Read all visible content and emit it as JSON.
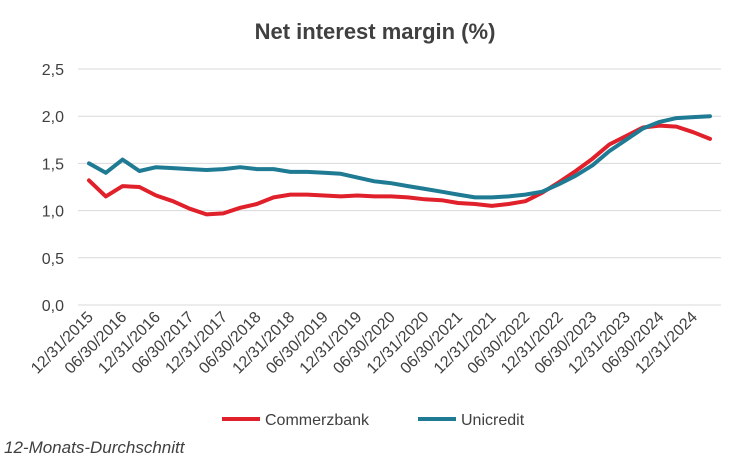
{
  "chart_data": {
    "type": "line",
    "title": "Net interest margin (%)",
    "xlabel": "",
    "ylabel": "",
    "ylim": [
      0,
      2.5
    ],
    "yticks": [
      "0,0",
      "0,5",
      "1,0",
      "1,5",
      "2,0",
      "2,5"
    ],
    "ytick_values": [
      0,
      0.5,
      1.0,
      1.5,
      2.0,
      2.5
    ],
    "grid": true,
    "legend": "bottom",
    "x": [
      "12/31/2015",
      "03/31/2016",
      "06/30/2016",
      "09/30/2016",
      "12/31/2016",
      "03/31/2017",
      "06/30/2017",
      "09/30/2017",
      "12/31/2017",
      "03/31/2018",
      "06/30/2018",
      "09/30/2018",
      "12/31/2018",
      "03/31/2019",
      "06/30/2019",
      "09/30/2019",
      "12/31/2019",
      "03/31/2020",
      "06/30/2020",
      "09/30/2020",
      "12/31/2020",
      "03/31/2021",
      "06/30/2021",
      "09/30/2021",
      "12/31/2021",
      "03/31/2022",
      "06/30/2022",
      "09/30/2022",
      "12/31/2022",
      "03/31/2023",
      "06/30/2023",
      "09/30/2023",
      "12/31/2023",
      "03/31/2024",
      "06/30/2024",
      "09/30/2024",
      "12/31/2024",
      "03/31/2025"
    ],
    "xtick_labels": [
      "12/31/2015",
      "06/30/2016",
      "12/31/2016",
      "06/30/2017",
      "12/31/2017",
      "06/30/2018",
      "12/31/2018",
      "06/30/2019",
      "12/31/2019",
      "06/30/2020",
      "12/31/2020",
      "06/30/2021",
      "12/31/2021",
      "06/30/2022",
      "12/31/2022",
      "06/30/2023",
      "12/31/2023",
      "06/30/2024",
      "12/31/2024"
    ],
    "series": [
      {
        "name": "Commerzbank",
        "color": "#e0202a",
        "values": [
          1.32,
          1.15,
          1.26,
          1.25,
          1.16,
          1.1,
          1.02,
          0.96,
          0.97,
          1.03,
          1.07,
          1.14,
          1.17,
          1.17,
          1.16,
          1.15,
          1.16,
          1.15,
          1.15,
          1.14,
          1.12,
          1.11,
          1.08,
          1.07,
          1.05,
          1.07,
          1.1,
          1.19,
          1.3,
          1.42,
          1.55,
          1.7,
          1.79,
          1.88,
          1.9,
          1.89,
          1.83,
          1.76
        ]
      },
      {
        "name": "Unicredit",
        "color": "#1f7a94",
        "values": [
          1.5,
          1.4,
          1.54,
          1.42,
          1.46,
          1.45,
          1.44,
          1.43,
          1.44,
          1.46,
          1.44,
          1.44,
          1.41,
          1.41,
          1.4,
          1.39,
          1.35,
          1.31,
          1.29,
          1.26,
          1.23,
          1.2,
          1.17,
          1.14,
          1.14,
          1.15,
          1.17,
          1.2,
          1.28,
          1.37,
          1.48,
          1.63,
          1.75,
          1.87,
          1.94,
          1.98,
          1.99,
          2.0
        ]
      }
    ]
  },
  "footnote": "12-Monats-Durchschnitt"
}
